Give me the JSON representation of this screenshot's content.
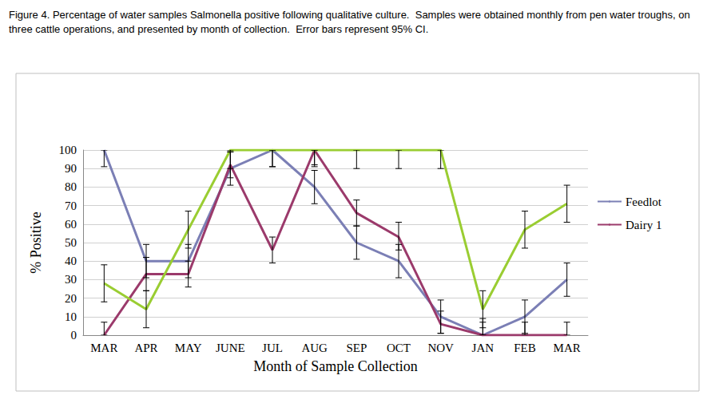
{
  "chart_data": {
    "type": "line",
    "title": "Figure 4. Percentage of water samples Salmonella positive following qualitative culture.  Samples were obtained monthly from pen water troughs, on three cattle operations, and presented by month of collection.  Error bars represent 95% CI.",
    "x_label": "Month of Sample Collection",
    "y_label": "% Positive",
    "categories": [
      "MAR",
      "APR",
      "MAY",
      "JUNE",
      "JUL",
      "AUG",
      "SEP",
      "OCT",
      "NOV",
      "JAN",
      "FEB",
      "MAR"
    ],
    "series": [
      {
        "name": "Feedlot",
        "color": "#7b7fb5",
        "values": [
          100,
          40,
          40,
          90,
          100,
          80,
          50,
          40,
          10,
          0,
          10,
          30
        ],
        "ci_low": [
          91,
          31,
          31,
          81,
          91,
          71,
          41,
          31,
          1,
          0,
          1,
          21
        ],
        "ci_high": [
          100,
          49,
          49,
          99,
          100,
          89,
          59,
          49,
          19,
          9,
          19,
          39
        ]
      },
      {
        "name": "Dairy 1",
        "color": "#9b3a6b",
        "values": [
          0,
          33,
          33,
          92,
          46,
          100,
          66,
          53,
          6,
          0,
          0,
          0
        ],
        "ci_low": [
          0,
          24,
          26,
          85,
          39,
          92,
          59,
          46,
          1,
          0,
          0,
          0
        ],
        "ci_high": [
          7,
          42,
          40,
          99,
          53,
          100,
          73,
          61,
          13,
          7,
          7,
          7
        ]
      },
      {
        "color": "#9acd32",
        "values": [
          28,
          14,
          57,
          100,
          100,
          100,
          100,
          100,
          100,
          14,
          57,
          71
        ],
        "ci_low": [
          18,
          4,
          47,
          90,
          91,
          91,
          90,
          90,
          90,
          4,
          47,
          61
        ],
        "ci_high": [
          38,
          24,
          67,
          100,
          100,
          100,
          100,
          100,
          100,
          24,
          67,
          81
        ]
      }
    ],
    "ylim": [
      0,
      100
    ],
    "yticks": [
      0,
      10,
      20,
      30,
      40,
      50,
      60,
      70,
      80,
      90,
      100
    ],
    "grid": true,
    "legend": "right"
  }
}
